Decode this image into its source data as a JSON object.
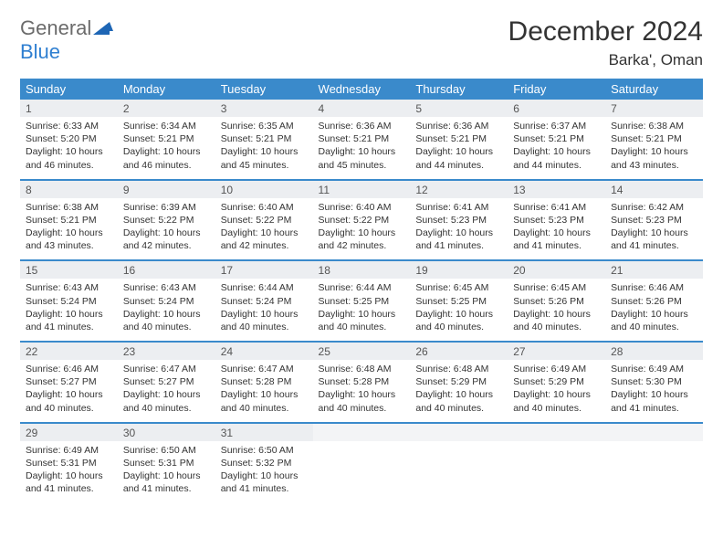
{
  "brand": {
    "part1": "General",
    "part2": "Blue"
  },
  "title": "December 2024",
  "location": "Barka', Oman",
  "colors": {
    "header_bg": "#3a8acb",
    "header_text": "#ffffff",
    "daynum_bg": "#eceef1",
    "logo_gray": "#6b6b6b",
    "logo_blue": "#2f7fd1"
  },
  "dow": [
    "Sunday",
    "Monday",
    "Tuesday",
    "Wednesday",
    "Thursday",
    "Friday",
    "Saturday"
  ],
  "days": [
    {
      "n": 1,
      "sr": "6:33 AM",
      "ss": "5:20 PM",
      "dl": "10 hours and 46 minutes."
    },
    {
      "n": 2,
      "sr": "6:34 AM",
      "ss": "5:21 PM",
      "dl": "10 hours and 46 minutes."
    },
    {
      "n": 3,
      "sr": "6:35 AM",
      "ss": "5:21 PM",
      "dl": "10 hours and 45 minutes."
    },
    {
      "n": 4,
      "sr": "6:36 AM",
      "ss": "5:21 PM",
      "dl": "10 hours and 45 minutes."
    },
    {
      "n": 5,
      "sr": "6:36 AM",
      "ss": "5:21 PM",
      "dl": "10 hours and 44 minutes."
    },
    {
      "n": 6,
      "sr": "6:37 AM",
      "ss": "5:21 PM",
      "dl": "10 hours and 44 minutes."
    },
    {
      "n": 7,
      "sr": "6:38 AM",
      "ss": "5:21 PM",
      "dl": "10 hours and 43 minutes."
    },
    {
      "n": 8,
      "sr": "6:38 AM",
      "ss": "5:21 PM",
      "dl": "10 hours and 43 minutes."
    },
    {
      "n": 9,
      "sr": "6:39 AM",
      "ss": "5:22 PM",
      "dl": "10 hours and 42 minutes."
    },
    {
      "n": 10,
      "sr": "6:40 AM",
      "ss": "5:22 PM",
      "dl": "10 hours and 42 minutes."
    },
    {
      "n": 11,
      "sr": "6:40 AM",
      "ss": "5:22 PM",
      "dl": "10 hours and 42 minutes."
    },
    {
      "n": 12,
      "sr": "6:41 AM",
      "ss": "5:23 PM",
      "dl": "10 hours and 41 minutes."
    },
    {
      "n": 13,
      "sr": "6:41 AM",
      "ss": "5:23 PM",
      "dl": "10 hours and 41 minutes."
    },
    {
      "n": 14,
      "sr": "6:42 AM",
      "ss": "5:23 PM",
      "dl": "10 hours and 41 minutes."
    },
    {
      "n": 15,
      "sr": "6:43 AM",
      "ss": "5:24 PM",
      "dl": "10 hours and 41 minutes."
    },
    {
      "n": 16,
      "sr": "6:43 AM",
      "ss": "5:24 PM",
      "dl": "10 hours and 40 minutes."
    },
    {
      "n": 17,
      "sr": "6:44 AM",
      "ss": "5:24 PM",
      "dl": "10 hours and 40 minutes."
    },
    {
      "n": 18,
      "sr": "6:44 AM",
      "ss": "5:25 PM",
      "dl": "10 hours and 40 minutes."
    },
    {
      "n": 19,
      "sr": "6:45 AM",
      "ss": "5:25 PM",
      "dl": "10 hours and 40 minutes."
    },
    {
      "n": 20,
      "sr": "6:45 AM",
      "ss": "5:26 PM",
      "dl": "10 hours and 40 minutes."
    },
    {
      "n": 21,
      "sr": "6:46 AM",
      "ss": "5:26 PM",
      "dl": "10 hours and 40 minutes."
    },
    {
      "n": 22,
      "sr": "6:46 AM",
      "ss": "5:27 PM",
      "dl": "10 hours and 40 minutes."
    },
    {
      "n": 23,
      "sr": "6:47 AM",
      "ss": "5:27 PM",
      "dl": "10 hours and 40 minutes."
    },
    {
      "n": 24,
      "sr": "6:47 AM",
      "ss": "5:28 PM",
      "dl": "10 hours and 40 minutes."
    },
    {
      "n": 25,
      "sr": "6:48 AM",
      "ss": "5:28 PM",
      "dl": "10 hours and 40 minutes."
    },
    {
      "n": 26,
      "sr": "6:48 AM",
      "ss": "5:29 PM",
      "dl": "10 hours and 40 minutes."
    },
    {
      "n": 27,
      "sr": "6:49 AM",
      "ss": "5:29 PM",
      "dl": "10 hours and 40 minutes."
    },
    {
      "n": 28,
      "sr": "6:49 AM",
      "ss": "5:30 PM",
      "dl": "10 hours and 41 minutes."
    },
    {
      "n": 29,
      "sr": "6:49 AM",
      "ss": "5:31 PM",
      "dl": "10 hours and 41 minutes."
    },
    {
      "n": 30,
      "sr": "6:50 AM",
      "ss": "5:31 PM",
      "dl": "10 hours and 41 minutes."
    },
    {
      "n": 31,
      "sr": "6:50 AM",
      "ss": "5:32 PM",
      "dl": "10 hours and 41 minutes."
    }
  ],
  "labels": {
    "sunrise": "Sunrise:",
    "sunset": "Sunset:",
    "daylight": "Daylight:"
  },
  "layout": {
    "start_offset": 0,
    "total_cells": 35
  }
}
